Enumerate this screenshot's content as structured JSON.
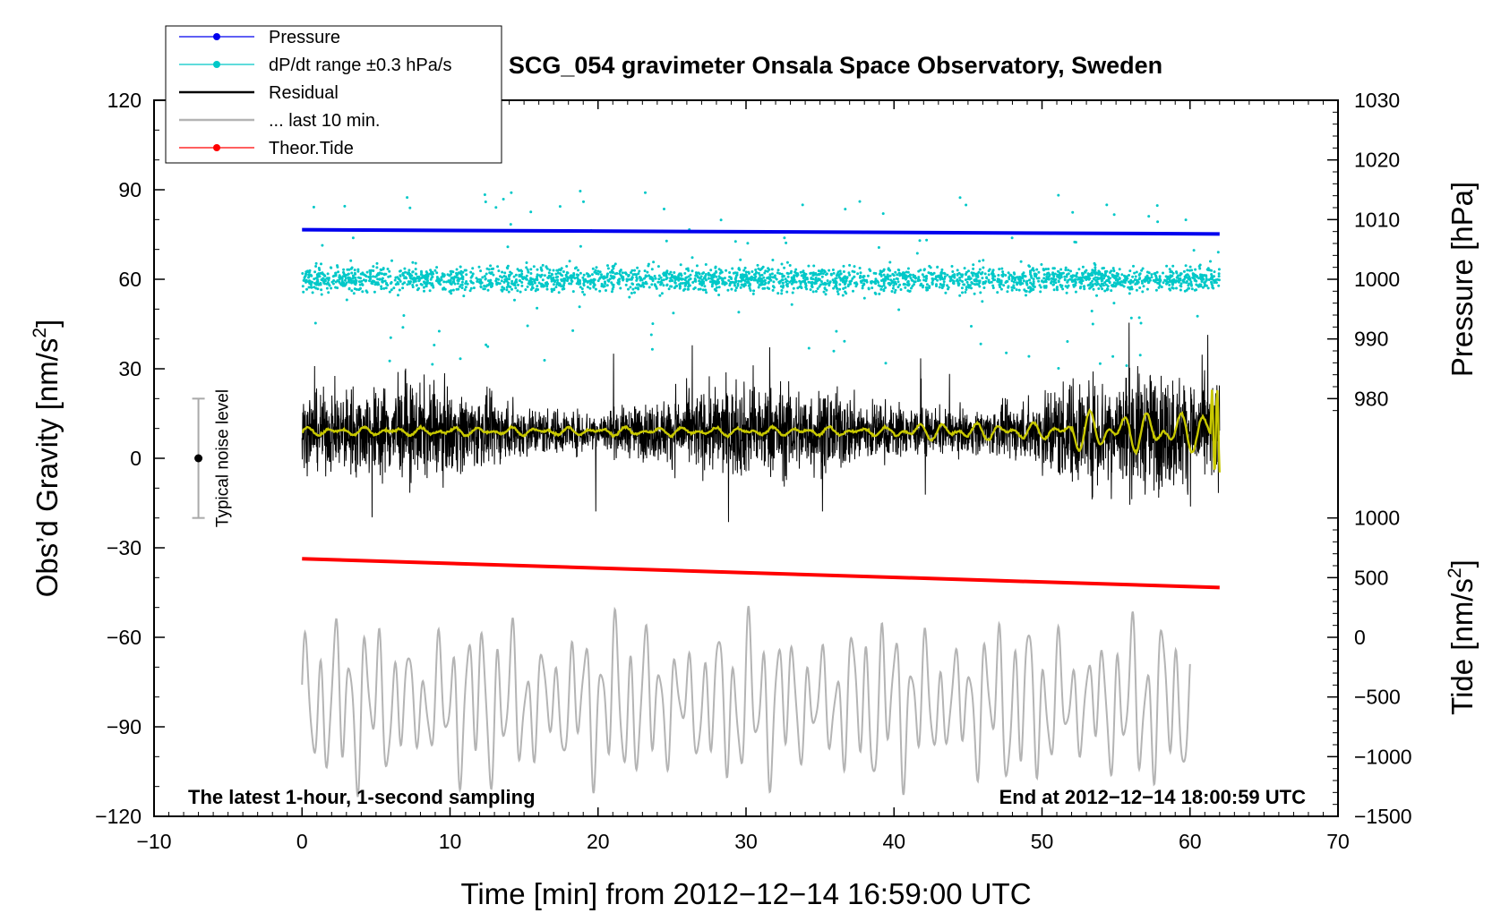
{
  "chart_data": {
    "type": "line",
    "title": "SCG_054 gravimeter Onsala Space Observatory, Sweden",
    "xlabel": "Time [min] from 2012−12−14 16:59:00 UTC",
    "ylabel_left": "Obs’d Gravity [nm/s²]",
    "ylabel_left_base": "Obs’d Gravity [nm/s",
    "ylabel_left_sup": "2",
    "ylabel_left_end": "]",
    "ylabel_right_pressure": "Pressure [hPa]",
    "ylabel_right_tide": "Tide [nm/s²]",
    "ylabel_right_tide_base": "Tide [nm/s",
    "ylabel_right_tide_sup": "2",
    "ylabel_right_tide_end": "]",
    "xlim": [
      -10,
      70
    ],
    "ylim_left": [
      -120,
      120
    ],
    "x_ticks": [
      -10,
      0,
      10,
      20,
      30,
      40,
      50,
      60,
      70
    ],
    "x_tick_labels": [
      "−10",
      "0",
      "10",
      "20",
      "30",
      "40",
      "50",
      "60",
      "70"
    ],
    "y_left_ticks": [
      120,
      90,
      60,
      30,
      0,
      -30,
      -60,
      -90,
      -120
    ],
    "y_left_tick_labels": [
      "120",
      "90",
      "60",
      "30",
      "0",
      "−30",
      "−60",
      "−90",
      "−120"
    ],
    "pressure_axis": {
      "ticks": [
        1030,
        1020,
        1010,
        1000,
        990,
        980
      ],
      "tick_labels": [
        "1030",
        "1020",
        "1010",
        "1000",
        "990",
        "980"
      ],
      "maps_to_left": [
        120,
        60
      ]
    },
    "tide_axis": {
      "ticks": [
        1000,
        500,
        0,
        -500,
        -1000,
        -1500
      ],
      "tick_labels": [
        "1000",
        "500",
        "0",
        "−500",
        "−1000",
        "−1500"
      ],
      "maps_to_left": [
        -20,
        -120
      ]
    },
    "legend": {
      "position": "top-left",
      "entries": [
        {
          "label": "Pressure",
          "color": "#0000ee",
          "marker": true
        },
        {
          "label": "dP/dt range ±0.3 hPa/s",
          "color": "#00c8c8",
          "marker": true
        },
        {
          "label": "Residual",
          "color": "#000000",
          "marker": false
        },
        {
          "label": "... last 10 min.",
          "color": "#b4b4b4",
          "marker": false
        },
        {
          "label": "Theor.Tide",
          "color": "#ff0000",
          "marker": true
        }
      ]
    },
    "series": [
      {
        "name": "Pressure",
        "color": "#0000ee",
        "x": [
          0,
          62
        ],
        "y_hpa": [
          1008.3,
          1007.6
        ]
      },
      {
        "name": "dP/dt range ±0.3 hPa/s",
        "color": "#00c8c8",
        "x_range": [
          0,
          62
        ],
        "center": 60,
        "spread": 8
      },
      {
        "name": "Residual",
        "color": "#000000",
        "x_range": [
          0,
          62
        ],
        "center": 9,
        "spread": 18
      },
      {
        "name": "Residual smoothed",
        "color": "#c8c800",
        "x_range": [
          0,
          62
        ],
        "center": 9
      },
      {
        "name": "... last 10 min.",
        "color": "#b4b4b4",
        "x_range": [
          0,
          60
        ],
        "center": -82,
        "spread": 25
      },
      {
        "name": "Theor.Tide",
        "color": "#ff0000",
        "x": [
          0,
          62
        ],
        "y_tide": [
          658,
          417
        ]
      }
    ],
    "noise_bar": {
      "label": "Typical noise level",
      "x": -7,
      "y": 0,
      "error": 20
    },
    "annotations": {
      "bottom_left": "The latest 1-hour, 1-second sampling",
      "bottom_right": "End at 2012−12−14 18:00:59 UTC"
    }
  }
}
